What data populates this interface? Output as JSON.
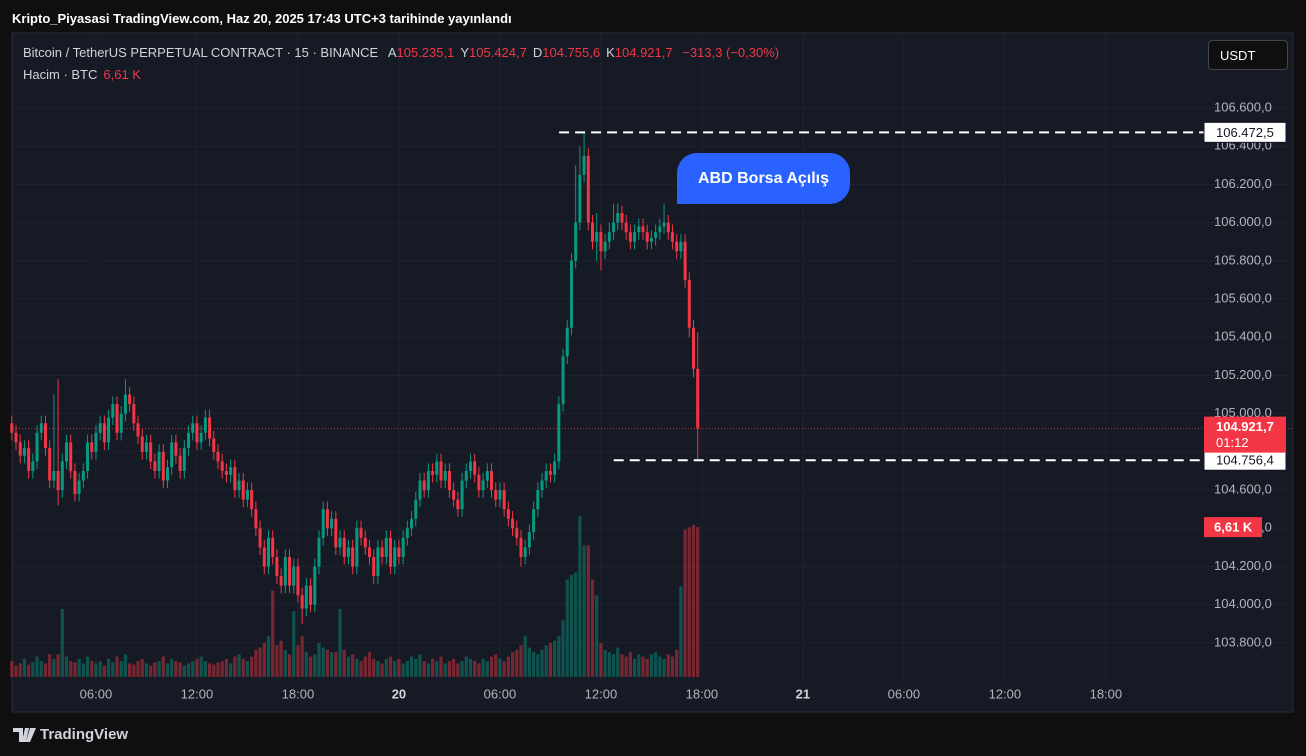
{
  "caption": "Kripto_Piyasasi TradingView.com, Haz 20, 2025 17:43 UTC+3 tarihinde yayınlandı",
  "footer": "TradingView",
  "chart_data": {
    "type": "candlestick",
    "title": "Bitcoin / TetherUS PERPETUAL CONTRACT · 15 · BINANCE",
    "ohlc_legend": [
      {
        "key": "A",
        "label": "105.235,1"
      },
      {
        "key": "Y",
        "label": "105.424,7"
      },
      {
        "key": "D",
        "label": "104.755,6"
      },
      {
        "key": "K",
        "label": "104.921,7"
      }
    ],
    "change": "−313,3 (−0,30%)",
    "volume_title": "Hacim · BTC",
    "volume_last_label": "6,61 K",
    "currency": "USDT",
    "annotation": "ABD Borsa Açılış",
    "price_label": "104.921,7",
    "countdown": "01:12",
    "up_color": "#089981",
    "down_color": "#f23645",
    "levels": [
      {
        "value": 106472.5,
        "label": "106.472,5"
      },
      {
        "value": 104756.4,
        "label": "104.756,4"
      }
    ],
    "ylim": [
      103606,
      106982
    ],
    "yticks": [
      {
        "value": 106600,
        "label": "106.600,0"
      },
      {
        "value": 106400,
        "label": "106.400,0"
      },
      {
        "value": 106200,
        "label": "106.200,0"
      },
      {
        "value": 106000,
        "label": "106.000,0"
      },
      {
        "value": 105800,
        "label": "105.800,0"
      },
      {
        "value": 105600,
        "label": "105.600,0"
      },
      {
        "value": 105400,
        "label": "105.400,0"
      },
      {
        "value": 105200,
        "label": "105.200,0"
      },
      {
        "value": 105000,
        "label": "105.000,0"
      },
      {
        "value": 104800,
        "label": "104.800,0"
      },
      {
        "value": 104600,
        "label": "104.600,0"
      },
      {
        "value": 104400,
        "label": "104.400,0"
      },
      {
        "value": 104200,
        "label": "104.200,0"
      },
      {
        "value": 104000,
        "label": "104.000,0"
      },
      {
        "value": 103800,
        "label": "103.800,0"
      }
    ],
    "xticks": [
      {
        "value": 20,
        "label": "06:00"
      },
      {
        "value": 44,
        "label": "12:00"
      },
      {
        "value": 68,
        "label": "18:00"
      },
      {
        "value": 92,
        "label": "20"
      },
      {
        "value": 116,
        "label": "06:00"
      },
      {
        "value": 140,
        "label": "12:00"
      },
      {
        "value": 164,
        "label": "18:00"
      },
      {
        "value": 188,
        "label": "21"
      },
      {
        "value": 212,
        "label": "06:00"
      },
      {
        "value": 236,
        "label": "12:00"
      },
      {
        "value": 260,
        "label": "18:00"
      }
    ],
    "open": [
      104950,
      104900,
      104850,
      104780,
      104820,
      104700,
      104750,
      104900,
      104950,
      104820,
      104650,
      104700,
      104600,
      104750,
      104850,
      104700,
      104580,
      104650,
      104700,
      104850,
      104800,
      104900,
      104950,
      104850,
      104980,
      105050,
      104900,
      105000,
      105100,
      105050,
      104950,
      104880,
      104800,
      104850,
      104750,
      104700,
      104800,
      104650,
      104720,
      104850,
      104780,
      104700,
      104820,
      104900,
      104950,
      104850,
      104900,
      104980,
      104870,
      104800,
      104750,
      104700,
      104680,
      104720,
      104600,
      104650,
      104550,
      104600,
      104500,
      104400,
      104300,
      104200,
      104350,
      104250,
      104150,
      104100,
      104250,
      104100,
      104200,
      104050,
      103980,
      104100,
      104000,
      104200,
      104350,
      104500,
      104400,
      104450,
      104300,
      104350,
      104250,
      104300,
      104200,
      104400,
      104350,
      104300,
      104250,
      104150,
      104300,
      104250,
      104350,
      104200,
      104300,
      104250,
      104350,
      104400,
      104450,
      104550,
      104650,
      104600,
      104700,
      104680,
      104750,
      104650,
      104700,
      104600,
      104550,
      104500,
      104650,
      104700,
      104750,
      104680,
      104600,
      104650,
      104700,
      104600,
      104550,
      104600,
      104500,
      104450,
      104400,
      104350,
      104250,
      104300,
      104380,
      104500,
      104600,
      104650,
      104700,
      104680,
      104750,
      105050,
      105300,
      105450,
      105800,
      106000,
      106250,
      106350,
      106000,
      105900,
      105950,
      105850,
      105900,
      105950,
      106000,
      106050,
      106000,
      105950,
      105900,
      105950,
      105980,
      105950,
      105900,
      105920,
      105950,
      105980,
      106000,
      105950,
      105900,
      105850,
      105900,
      105700,
      105450,
      105235.1
    ],
    "high": [
      104990,
      104940,
      104890,
      104860,
      104860,
      104790,
      104940,
      104990,
      104990,
      104860,
      105100,
      105180,
      104790,
      104890,
      104890,
      104740,
      104690,
      104740,
      104890,
      104890,
      104940,
      104990,
      104990,
      105020,
      105090,
      105090,
      105040,
      105180,
      105140,
      105090,
      104990,
      104920,
      104890,
      104890,
      104790,
      104840,
      104840,
      104760,
      104890,
      104890,
      104820,
      104860,
      104940,
      104990,
      104990,
      104940,
      105020,
      105020,
      104910,
      104840,
      104790,
      104740,
      104760,
      104760,
      104690,
      104690,
      104640,
      104640,
      104540,
      104440,
      104340,
      104390,
      104390,
      104290,
      104190,
      104290,
      104290,
      104240,
      104240,
      104090,
      104140,
      104140,
      104240,
      104390,
      104540,
      104540,
      104490,
      104490,
      104390,
      104390,
      104340,
      104340,
      104440,
      104440,
      104390,
      104340,
      104290,
      104340,
      104340,
      104390,
      104390,
      104340,
      104340,
      104390,
      104440,
      104490,
      104590,
      104690,
      104690,
      104740,
      104740,
      104790,
      104790,
      104740,
      104740,
      104640,
      104590,
      104690,
      104740,
      104790,
      104790,
      104720,
      104690,
      104740,
      104740,
      104640,
      104640,
      104640,
      104540,
      104490,
      104440,
      104390,
      104340,
      104420,
      104540,
      104640,
      104690,
      104740,
      104740,
      104790,
      105090,
      105340,
      105490,
      105840,
      106300,
      106400,
      106472.5,
      106390,
      106040,
      106050,
      105990,
      105940,
      106000,
      106100,
      106100,
      106090,
      106040,
      105990,
      105990,
      106020,
      106020,
      105990,
      105960,
      105990,
      106020,
      106100,
      106040,
      105990,
      105940,
      105940,
      105940,
      105740,
      105490,
      105424.7
    ],
    "low": [
      104860,
      104810,
      104740,
      104740,
      104660,
      104660,
      104710,
      104860,
      104780,
      104610,
      104610,
      104520,
      104560,
      104710,
      104660,
      104540,
      104540,
      104610,
      104660,
      104760,
      104760,
      104860,
      104810,
      104810,
      104940,
      104860,
      104860,
      104960,
      105010,
      104910,
      104840,
      104760,
      104760,
      104710,
      104660,
      104660,
      104610,
      104610,
      104680,
      104740,
      104660,
      104660,
      104780,
      104860,
      104810,
      104810,
      104860,
      104830,
      104760,
      104710,
      104660,
      104640,
      104640,
      104560,
      104560,
      104510,
      104510,
      104460,
      104360,
      104260,
      104160,
      104160,
      104210,
      104110,
      104060,
      104060,
      104060,
      104060,
      104010,
      103900,
      103940,
      103960,
      103960,
      104160,
      104310,
      104360,
      104360,
      104260,
      104260,
      104210,
      104210,
      104160,
      104160,
      104310,
      104260,
      104210,
      104110,
      104110,
      104210,
      104210,
      104160,
      104160,
      104210,
      104210,
      104310,
      104360,
      104410,
      104510,
      104560,
      104560,
      104640,
      104640,
      104610,
      104610,
      104560,
      104510,
      104460,
      104460,
      104610,
      104660,
      104640,
      104560,
      104560,
      104610,
      104560,
      104510,
      104510,
      104460,
      104410,
      104360,
      104310,
      104200,
      104210,
      104260,
      104340,
      104460,
      104560,
      104610,
      104640,
      104640,
      104710,
      105010,
      105260,
      105410,
      105760,
      105960,
      106210,
      105960,
      105860,
      105800,
      105750,
      105810,
      105860,
      105910,
      105960,
      105960,
      105910,
      105860,
      105860,
      105910,
      105910,
      105860,
      105860,
      105880,
      105910,
      105940,
      105910,
      105860,
      105810,
      105810,
      105660,
      105400,
      105190,
      104755.6
    ],
    "close": [
      104900,
      104850,
      104780,
      104820,
      104700,
      104750,
      104900,
      104950,
      104820,
      104650,
      104700,
      104600,
      104750,
      104850,
      104700,
      104580,
      104650,
      104700,
      104850,
      104800,
      104900,
      104950,
      104850,
      104980,
      105050,
      104900,
      105000,
      105100,
      105050,
      104950,
      104880,
      104800,
      104850,
      104750,
      104700,
      104800,
      104650,
      104720,
      104850,
      104780,
      104700,
      104820,
      104900,
      104950,
      104850,
      104900,
      104980,
      104870,
      104800,
      104750,
      104700,
      104680,
      104720,
      104600,
      104650,
      104550,
      104600,
      104500,
      104400,
      104300,
      104200,
      104350,
      104250,
      104150,
      104100,
      104250,
      104100,
      104200,
      104050,
      103980,
      104100,
      104000,
      104200,
      104350,
      104500,
      104400,
      104450,
      104300,
      104350,
      104250,
      104300,
      104200,
      104400,
      104350,
      104300,
      104250,
      104150,
      104300,
      104250,
      104350,
      104200,
      104300,
      104250,
      104350,
      104400,
      104450,
      104550,
      104650,
      104600,
      104700,
      104680,
      104750,
      104650,
      104700,
      104600,
      104550,
      104500,
      104650,
      104700,
      104750,
      104680,
      104600,
      104650,
      104700,
      104600,
      104550,
      104600,
      104500,
      104450,
      104400,
      104350,
      104250,
      104300,
      104380,
      104500,
      104600,
      104650,
      104700,
      104680,
      104750,
      105050,
      105300,
      105450,
      105800,
      106000,
      106250,
      106350,
      106000,
      105900,
      105950,
      105850,
      105900,
      105950,
      106000,
      106050,
      106000,
      105950,
      105900,
      105950,
      105980,
      105950,
      105900,
      105920,
      105950,
      105980,
      106000,
      105950,
      105900,
      105850,
      105900,
      105700,
      105450,
      105235.1,
      104921.7
    ],
    "volume": [
      700,
      500,
      600,
      800,
      550,
      650,
      900,
      700,
      600,
      1000,
      800,
      1000,
      3000,
      900,
      700,
      650,
      800,
      600,
      900,
      700,
      600,
      700,
      500,
      800,
      650,
      900,
      700,
      1000,
      600,
      550,
      700,
      800,
      600,
      500,
      650,
      700,
      900,
      600,
      800,
      700,
      650,
      500,
      600,
      700,
      800,
      900,
      700,
      600,
      550,
      650,
      700,
      800,
      600,
      900,
      1000,
      800,
      700,
      900,
      1200,
      1300,
      1500,
      1800,
      3800,
      1400,
      1600,
      1200,
      1000,
      2900,
      1400,
      1800,
      1100,
      900,
      1000,
      1500,
      1300,
      1200,
      1100,
      1100,
      3000,
      1200,
      900,
      1000,
      800,
      700,
      900,
      1100,
      800,
      700,
      600,
      800,
      900,
      700,
      800,
      600,
      700,
      900,
      800,
      1000,
      700,
      600,
      800,
      700,
      900,
      600,
      700,
      800,
      600,
      700,
      900,
      800,
      700,
      600,
      800,
      700,
      900,
      1000,
      800,
      700,
      900,
      1100,
      1200,
      1400,
      1800,
      1300,
      1100,
      1000,
      1200,
      1400,
      1500,
      1600,
      1800,
      2500,
      4300,
      4500,
      4600,
      7100,
      5800,
      5800,
      4300,
      3600,
      1500,
      1200,
      1100,
      1000,
      1300,
      1000,
      900,
      1100,
      800,
      1000,
      900,
      800,
      1000,
      1100,
      900,
      800,
      1000,
      900,
      1200,
      4000,
      6500,
      6600,
      6700,
      6610
    ]
  }
}
